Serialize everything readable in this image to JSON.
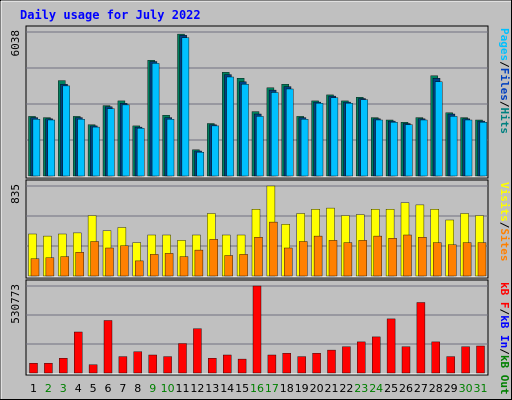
{
  "chart_data": {
    "type": "bar",
    "title": "Daily usage for July 2022",
    "days": [
      "1",
      "2",
      "3",
      "4",
      "5",
      "6",
      "7",
      "8",
      "9",
      "10",
      "11",
      "12",
      "13",
      "14",
      "15",
      "16",
      "17",
      "18",
      "19",
      "20",
      "21",
      "22",
      "23",
      "24",
      "25",
      "26",
      "27",
      "28",
      "29",
      "30",
      "31"
    ],
    "weekend_days": [
      "2",
      "3",
      "9",
      "10",
      "16",
      "17",
      "23",
      "24",
      "30",
      "31"
    ],
    "panels": [
      {
        "max_label": "6038",
        "legend": [
          {
            "name": "Pages",
            "color": "#00c0ff"
          },
          {
            "name": "/",
            "color": "#000000"
          },
          {
            "name": "Files",
            "color": "#0040c0"
          },
          {
            "name": "/",
            "color": "#000000"
          },
          {
            "name": "Hits",
            "color": "#008080"
          }
        ],
        "ylim": [
          0,
          6038
        ],
        "series": [
          {
            "name": "Hits",
            "color": "#00805f",
            "values": [
              2500,
              2450,
              4000,
              2500,
              2150,
              2950,
              3150,
              2100,
              4850,
              2550,
              5950,
              1100,
              2200,
              4350,
              4100,
              2700,
              3700,
              3850,
              2500,
              3150,
              3400,
              3150,
              3300,
              2450,
              2350,
              2250,
              2450,
              4200,
              2650,
              2450,
              2350
            ]
          },
          {
            "name": "Files",
            "color": "#004080",
            "values": [
              2450,
              2400,
              3850,
              2450,
              2100,
              2900,
              3050,
              2050,
              4800,
              2450,
              5900,
              1050,
              2150,
              4250,
              3950,
              2600,
              3600,
              3750,
              2450,
              3100,
              3350,
              3100,
              3250,
              2400,
              2300,
              2200,
              2400,
              4100,
              2600,
              2400,
              2300
            ]
          },
          {
            "name": "Pages",
            "color": "#00c0ff",
            "values": [
              2380,
              2350,
              3780,
              2380,
              2050,
              2820,
              2980,
              2000,
              4720,
              2380,
              5800,
              1000,
              2100,
              4150,
              3850,
              2500,
              3500,
              3650,
              2380,
              3050,
              3280,
              3050,
              3200,
              2350,
              2250,
              2150,
              2350,
              3950,
              2500,
              2350,
              2250
            ]
          }
        ]
      },
      {
        "max_label": "835",
        "legend": [
          {
            "name": "Visits",
            "color": "#ffff00"
          },
          {
            "name": "/",
            "color": "#000000"
          },
          {
            "name": "Sites",
            "color": "#ff8000"
          }
        ],
        "ylim": [
          0,
          835
        ],
        "series": [
          {
            "name": "Visits",
            "color": "#ffff00",
            "values": [
              390,
              370,
              390,
              400,
              560,
              420,
              450,
              310,
              380,
              380,
              330,
              380,
              580,
              380,
              380,
              620,
              835,
              480,
              580,
              620,
              630,
              560,
              570,
              620,
              620,
              680,
              660,
              620,
              520,
              580,
              560
            ]
          },
          {
            "name": "Sites",
            "color": "#ff8000",
            "values": [
              160,
              170,
              180,
              220,
              320,
              260,
              280,
              140,
              200,
              210,
              180,
              240,
              340,
              190,
              200,
              360,
              500,
              260,
              320,
              370,
              330,
              310,
              330,
              370,
              350,
              380,
              360,
              310,
              290,
              310,
              310
            ]
          }
        ]
      },
      {
        "max_label": "530773",
        "legend": [
          {
            "name": "kB F",
            "color": "#ff0000"
          },
          {
            "name": "/",
            "color": "#000000"
          },
          {
            "name": "kB In",
            "color": "#0000ff"
          },
          {
            "name": "/",
            "color": "#000000"
          },
          {
            "name": "kB Out",
            "color": "#008000"
          }
        ],
        "ylim": [
          0,
          530773
        ],
        "series": [
          {
            "name": "kB F",
            "color": "#ff0000",
            "values": [
              60000,
              60000,
              90000,
              250000,
              50000,
              320000,
              100000,
              130000,
              110000,
              100000,
              180000,
              270000,
              90000,
              110000,
              85000,
              530773,
              110000,
              120000,
              100000,
              120000,
              140000,
              160000,
              190000,
              220000,
              330000,
              160000,
              430000,
              190000,
              100000,
              160000,
              165000
            ]
          }
        ]
      }
    ]
  }
}
